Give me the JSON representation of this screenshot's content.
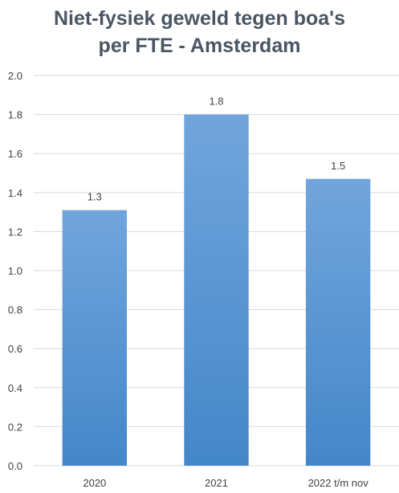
{
  "chart_data": {
    "type": "bar",
    "title_lines": [
      "Niet-fysiek geweld tegen boa's",
      "per FTE - Amsterdam"
    ],
    "categories": [
      "2020",
      "2021",
      "2022 t/m nov"
    ],
    "values": [
      1.31,
      1.8,
      1.47
    ],
    "data_labels": [
      "1.3",
      "1.8",
      "1.5"
    ],
    "y_ticks": [
      "0.0",
      "0.2",
      "0.4",
      "0.6",
      "0.8",
      "1.0",
      "1.2",
      "1.4",
      "1.6",
      "1.8",
      "2.0"
    ],
    "ylim": [
      0,
      2.0
    ],
    "grid": true,
    "legend": "none",
    "colors": {
      "bar_top": "#72a5dc",
      "bar_bottom": "#4487c9",
      "grid": "#d9d9d9",
      "title": "#4a5663",
      "text": "#404040"
    }
  }
}
